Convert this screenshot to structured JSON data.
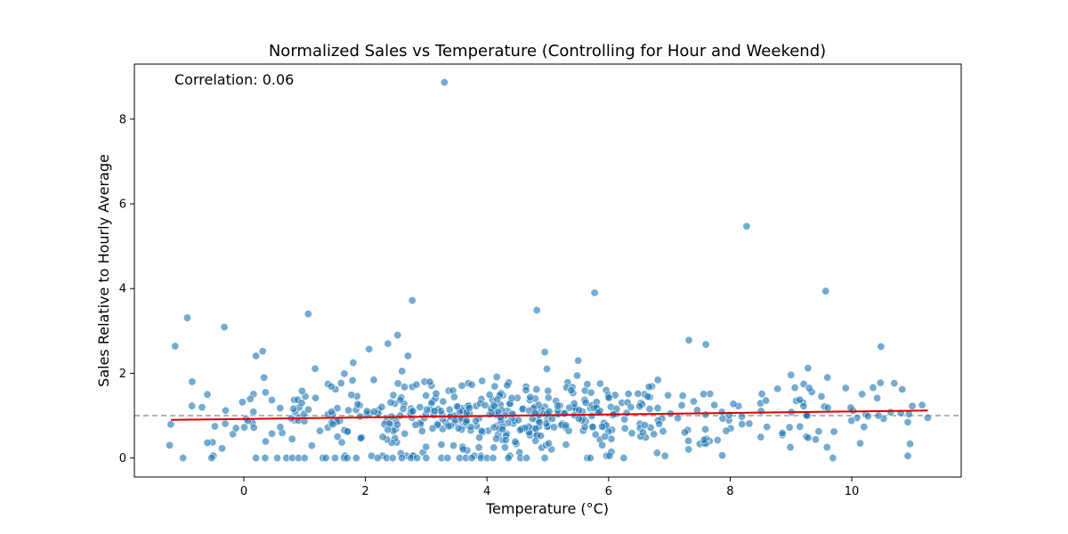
{
  "chart_data": {
    "type": "scatter",
    "title": "Normalized Sales vs Temperature (Controlling for Hour and Weekend)",
    "xlabel": "Temperature (°C)",
    "ylabel": "Sales Relative to Hourly Average",
    "xlim": [
      -1.8,
      11.8
    ],
    "ylim": [
      -0.45,
      9.3
    ],
    "xticks": [
      0,
      2,
      4,
      6,
      8,
      10
    ],
    "yticks": [
      0,
      2,
      4,
      6,
      8
    ],
    "annotation": "Correlation: 0.06",
    "reference_line_y": 1.0,
    "trend_line": {
      "x": [
        -1.2,
        11.25
      ],
      "y": [
        0.9,
        1.12
      ]
    },
    "point_color": "#1f77b4",
    "trend_color": "#e00000",
    "reference_color": "#999999",
    "grid": false,
    "outliers": [
      {
        "x": 3.3,
        "y": 8.87
      },
      {
        "x": 8.27,
        "y": 5.47
      },
      {
        "x": 9.57,
        "y": 3.94
      },
      {
        "x": 5.77,
        "y": 3.9
      },
      {
        "x": 2.77,
        "y": 3.72
      },
      {
        "x": 4.82,
        "y": 3.49
      },
      {
        "x": 1.06,
        "y": 3.4
      },
      {
        "x": -0.93,
        "y": 3.31
      },
      {
        "x": -0.32,
        "y": 3.09
      },
      {
        "x": 7.32,
        "y": 2.78
      },
      {
        "x": 7.6,
        "y": 2.68
      },
      {
        "x": -1.13,
        "y": 2.64
      },
      {
        "x": 10.48,
        "y": 2.63
      },
      {
        "x": 2.37,
        "y": 2.7
      },
      {
        "x": 2.53,
        "y": 2.9
      },
      {
        "x": 0.31,
        "y": 2.52
      },
      {
        "x": 4.95,
        "y": 2.5
      },
      {
        "x": 2.06,
        "y": 2.57
      },
      {
        "x": 2.7,
        "y": 2.41
      },
      {
        "x": 0.2,
        "y": 2.41
      },
      {
        "x": 5.5,
        "y": 2.3
      },
      {
        "x": 1.8,
        "y": 2.25
      },
      {
        "x": 9.28,
        "y": 2.12
      },
      {
        "x": 9.0,
        "y": 1.96
      },
      {
        "x": 9.6,
        "y": 1.9
      },
      {
        "x": -0.85,
        "y": 1.8
      },
      {
        "x": 10.83,
        "y": 1.62
      },
      {
        "x": 10.35,
        "y": 1.66
      },
      {
        "x": 9.9,
        "y": 1.65
      },
      {
        "x": 9.3,
        "y": 1.65
      },
      {
        "x": -0.6,
        "y": 1.5
      },
      {
        "x": -1.22,
        "y": 0.3
      },
      {
        "x": -1.0,
        "y": 0.0
      },
      {
        "x": -0.53,
        "y": 0.0
      },
      {
        "x": -0.3,
        "y": 1.12
      },
      {
        "x": -0.6,
        "y": 0.36
      },
      {
        "x": 7.87,
        "y": 0.06
      },
      {
        "x": 9.69,
        "y": 0.0
      },
      {
        "x": 11.25,
        "y": 0.95
      }
    ],
    "zero_points_x": [
      0.2,
      0.35,
      0.55,
      0.7,
      0.8,
      0.9,
      1.0,
      1.3,
      1.35,
      1.5,
      1.65,
      1.7,
      1.85,
      2.2,
      2.35,
      2.45,
      2.6,
      2.75,
      2.85,
      3.0,
      3.25,
      3.35,
      3.55,
      3.65,
      3.75,
      3.9,
      4.0,
      4.1,
      4.35,
      4.55,
      4.65,
      4.95,
      5.65,
      5.7,
      6.25
    ],
    "cluster_seed": 42,
    "cluster_count": 520
  }
}
